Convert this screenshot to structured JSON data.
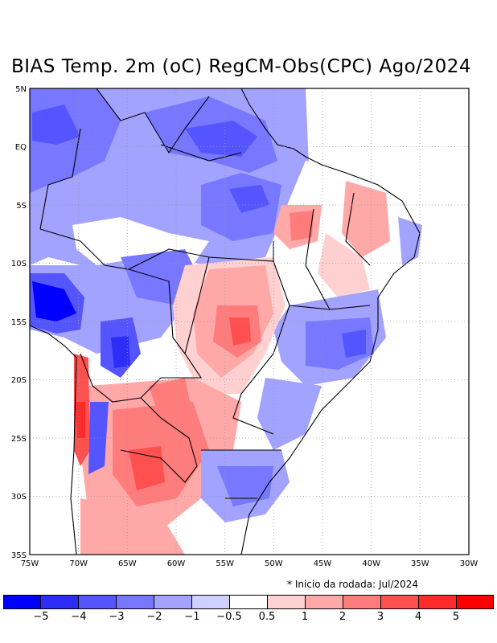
{
  "title": "BIAS Temp. 2m (oC) RegCM-Obs(CPC) Ago/2024",
  "note": "* Inicio da rodada: Jul/2024",
  "lat_labels": [
    "5N",
    "EQ",
    "5S",
    "10S",
    "15S",
    "20S",
    "25S",
    "30S",
    "35S"
  ],
  "lon_labels": [
    "75W",
    "70W",
    "65W",
    "60W",
    "55W",
    "50W",
    "45W",
    "40W",
    "35W",
    "30W"
  ],
  "colorbar": {
    "colors": [
      "#0000ff",
      "#2d2df5",
      "#5555ff",
      "#7777ff",
      "#a2a2ff",
      "#d0d0ff",
      "#ffffff",
      "#ffd0d0",
      "#ffa8a8",
      "#ff7c7c",
      "#ff5050",
      "#ff2a2a",
      "#ff0000"
    ],
    "labels": [
      "−5",
      "−4",
      "−3",
      "−2",
      "−1",
      "−0.5",
      "0.5",
      "1",
      "2",
      "3",
      "4",
      "5"
    ]
  }
}
